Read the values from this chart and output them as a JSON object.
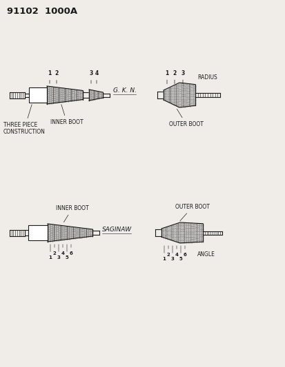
{
  "title_part1": "91102",
  "title_part2": "1000A",
  "bg_color": "#f0ede8",
  "line_color": "#1a1a1a",
  "stipple_color": "#888888",
  "top_left_label1": "THREE PIECE",
  "top_left_label2": "CONSTRUCTION",
  "top_left_inner": "INNER BOOT",
  "top_left_type": "G. K. N.",
  "top_right_outer": "OUTER BOOT",
  "top_right_type": "RADIUS",
  "bot_left_inner": "INNER BOOT",
  "bot_left_type": "SAGINAW",
  "bot_right_outer": "OUTER BOOT",
  "bot_right_type": "ANGLE",
  "fig_w": 4.14,
  "fig_h": 5.33,
  "dpi": 100
}
